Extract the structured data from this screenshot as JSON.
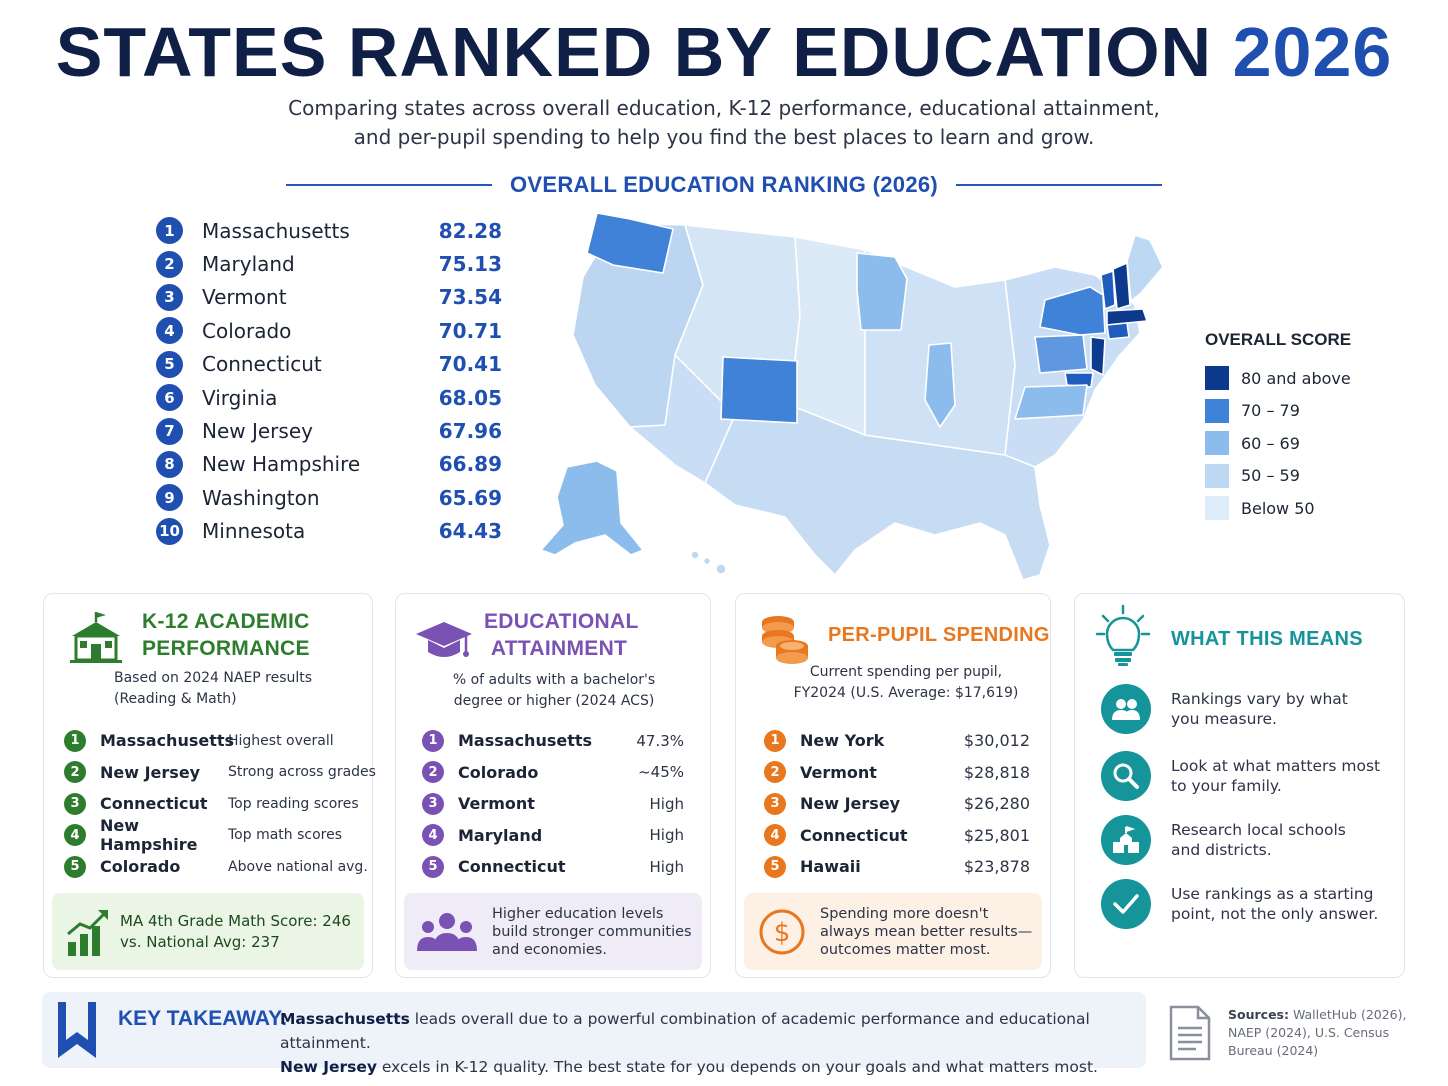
{
  "title": {
    "main": "STATES RANKED BY EDUCATION",
    "year": "2026"
  },
  "subtitle": {
    "line1": "Comparing states across overall education, K-12 performance, educational attainment,",
    "line2": "and per-pupil spending to help you find the best places to learn and grow."
  },
  "overall": {
    "heading": "OVERALL  EDUCATION RANKING (2026)",
    "items": [
      {
        "rank": "1",
        "state": "Massachusetts",
        "score": "82.28"
      },
      {
        "rank": "2",
        "state": "Maryland",
        "score": "75.13"
      },
      {
        "rank": "3",
        "state": "Vermont",
        "score": "73.54"
      },
      {
        "rank": "4",
        "state": "Colorado",
        "score": "70.71"
      },
      {
        "rank": "5",
        "state": "Connecticut",
        "score": "70.41"
      },
      {
        "rank": "6",
        "state": "Virginia",
        "score": "68.05"
      },
      {
        "rank": "7",
        "state": "New Jersey",
        "score": "67.96"
      },
      {
        "rank": "8",
        "state": "New Hampshire",
        "score": "66.89"
      },
      {
        "rank": "9",
        "state": "Washington",
        "score": "65.69"
      },
      {
        "rank": "10",
        "state": "Minnesota",
        "score": "64.43"
      }
    ]
  },
  "legend": {
    "title": "OVERALL SCORE",
    "items": [
      {
        "label": "80 and above",
        "color": "#0d3a8c"
      },
      {
        "label": "70 – 79",
        "color": "#3f82d8"
      },
      {
        "label": "60 – 69",
        "color": "#8cbcec"
      },
      {
        "label": "50 – 59",
        "color": "#bcd8f3"
      },
      {
        "label": "Below 50",
        "color": "#deebf8"
      }
    ]
  },
  "k12": {
    "title_line1": "K-12 ACADEMIC",
    "title_line2": "PERFORMANCE",
    "sub_line1": "Based on 2024 NAEP results",
    "sub_line2": "(Reading & Math)",
    "color": "#2e7d2e",
    "items": [
      {
        "rank": "1",
        "state": "Massachusetts",
        "note": "Highest overall"
      },
      {
        "rank": "2",
        "state": "New Jersey",
        "note": "Strong across grades"
      },
      {
        "rank": "3",
        "state": "Connecticut",
        "note": "Top reading scores"
      },
      {
        "rank": "4",
        "state": "New Hampshire",
        "note": "Top math scores"
      },
      {
        "rank": "5",
        "state": "Colorado",
        "note": "Above national avg."
      }
    ],
    "note_line1": "MA 4th Grade Math Score: 246",
    "note_line2": "vs. National Avg: 237"
  },
  "attainment": {
    "title_line1": "EDUCATIONAL",
    "title_line2": "ATTAINMENT",
    "sub_line1": "% of adults with a bachelor's",
    "sub_line2": "degree or higher (2024 ACS)",
    "color": "#7a52b3",
    "items": [
      {
        "rank": "1",
        "state": "Massachusetts",
        "value": "47.3%"
      },
      {
        "rank": "2",
        "state": "Colorado",
        "value": "~45%"
      },
      {
        "rank": "3",
        "state": "Vermont",
        "value": "High"
      },
      {
        "rank": "4",
        "state": "Maryland",
        "value": "High"
      },
      {
        "rank": "5",
        "state": "Connecticut",
        "value": "High"
      }
    ],
    "note_line1": "Higher education levels",
    "note_line2": "build stronger communities",
    "note_line3": "and economies."
  },
  "spending": {
    "title": "PER-PUPIL SPENDING",
    "sub_line1": "Current spending per pupil,",
    "sub_line2": "FY2024 (U.S. Average: $17,619)",
    "color": "#e8771e",
    "items": [
      {
        "rank": "1",
        "state": "New York",
        "value": "$30,012"
      },
      {
        "rank": "2",
        "state": "Vermont",
        "value": "$28,818"
      },
      {
        "rank": "3",
        "state": "New Jersey",
        "value": "$26,280"
      },
      {
        "rank": "4",
        "state": "Connecticut",
        "value": "$25,801"
      },
      {
        "rank": "5",
        "state": "Hawaii",
        "value": "$23,878"
      }
    ],
    "note_line1": "Spending more doesn't",
    "note_line2": "always mean better results—",
    "note_line3": "outcomes matter most."
  },
  "what_means": {
    "title": "WHAT THIS MEANS",
    "color": "#15949a",
    "items": [
      {
        "line1": "Rankings vary by what",
        "line2": "you measure.",
        "icon": "people-icon"
      },
      {
        "line1": "Look at what matters most",
        "line2": "to your family.",
        "icon": "search-icon"
      },
      {
        "line1": "Research local schools",
        "line2": "and districts.",
        "icon": "school-icon"
      },
      {
        "line1": "Use rankings as a starting",
        "line2": "point, not the only answer.",
        "icon": "check-icon"
      }
    ]
  },
  "takeaway": {
    "label": "KEY TAKEAWAY:",
    "s1_bold": "Massachusetts",
    "s1_rest": " leads overall due to a powerful combination of academic performance and educational attainment.",
    "s2_bold": "New Jersey",
    "s2_rest": " excels in K-12 quality. The best state for you depends on your goals and what matters most."
  },
  "sources": {
    "label": "Sources:",
    "t1": " WalletHub (2026),",
    "t2": "NAEP (2024), U.S. Census",
    "t3": "Bureau (2024)"
  }
}
